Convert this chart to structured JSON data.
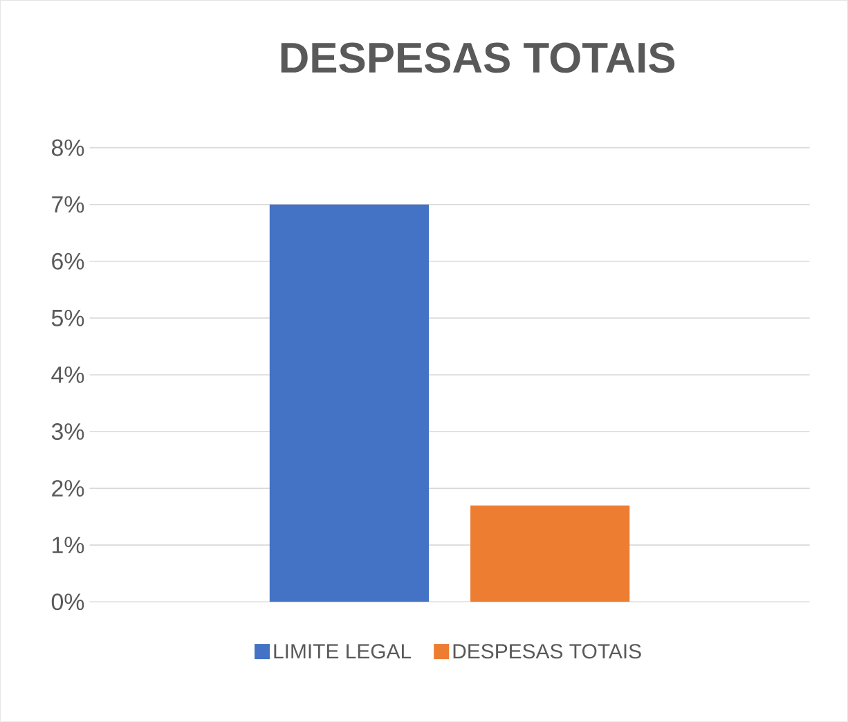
{
  "chart_data": {
    "type": "bar",
    "title": "DESPESAS TOTAIS",
    "categories": [
      null
    ],
    "series": [
      {
        "name": "LIMITE LEGAL",
        "color": "#4472c4",
        "values": [
          7
        ]
      },
      {
        "name": "DESPESAS TOTAIS",
        "color": "#ed7d31",
        "values": [
          1.7
        ]
      }
    ],
    "ylim": [
      0,
      8
    ],
    "yticks": [
      {
        "value": 0,
        "label": "0%"
      },
      {
        "value": 1,
        "label": "1%"
      },
      {
        "value": 2,
        "label": "2%"
      },
      {
        "value": 3,
        "label": "3%"
      },
      {
        "value": 4,
        "label": "4%"
      },
      {
        "value": 5,
        "label": "5%"
      },
      {
        "value": 6,
        "label": "6%"
      },
      {
        "value": 7,
        "label": "7%"
      },
      {
        "value": 8,
        "label": "8%"
      }
    ],
    "grid": "y",
    "legend": "bottom"
  }
}
